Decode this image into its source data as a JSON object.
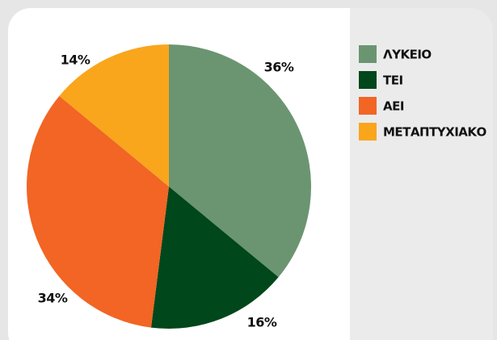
{
  "chart_data": {
    "type": "pie",
    "categories": [
      "ΛΥΚΕΙΟ",
      "ΤΕΙ",
      "ΑΕΙ",
      "ΜΕΤΑΠΤΥΧΙΑΚΟ"
    ],
    "values": [
      36,
      16,
      34,
      14
    ],
    "value_labels": [
      "36%",
      "16%",
      "34%",
      "14%"
    ],
    "colors": [
      "#6b9571",
      "#00471b",
      "#f26524",
      "#f9a61c"
    ],
    "legend": "right"
  }
}
